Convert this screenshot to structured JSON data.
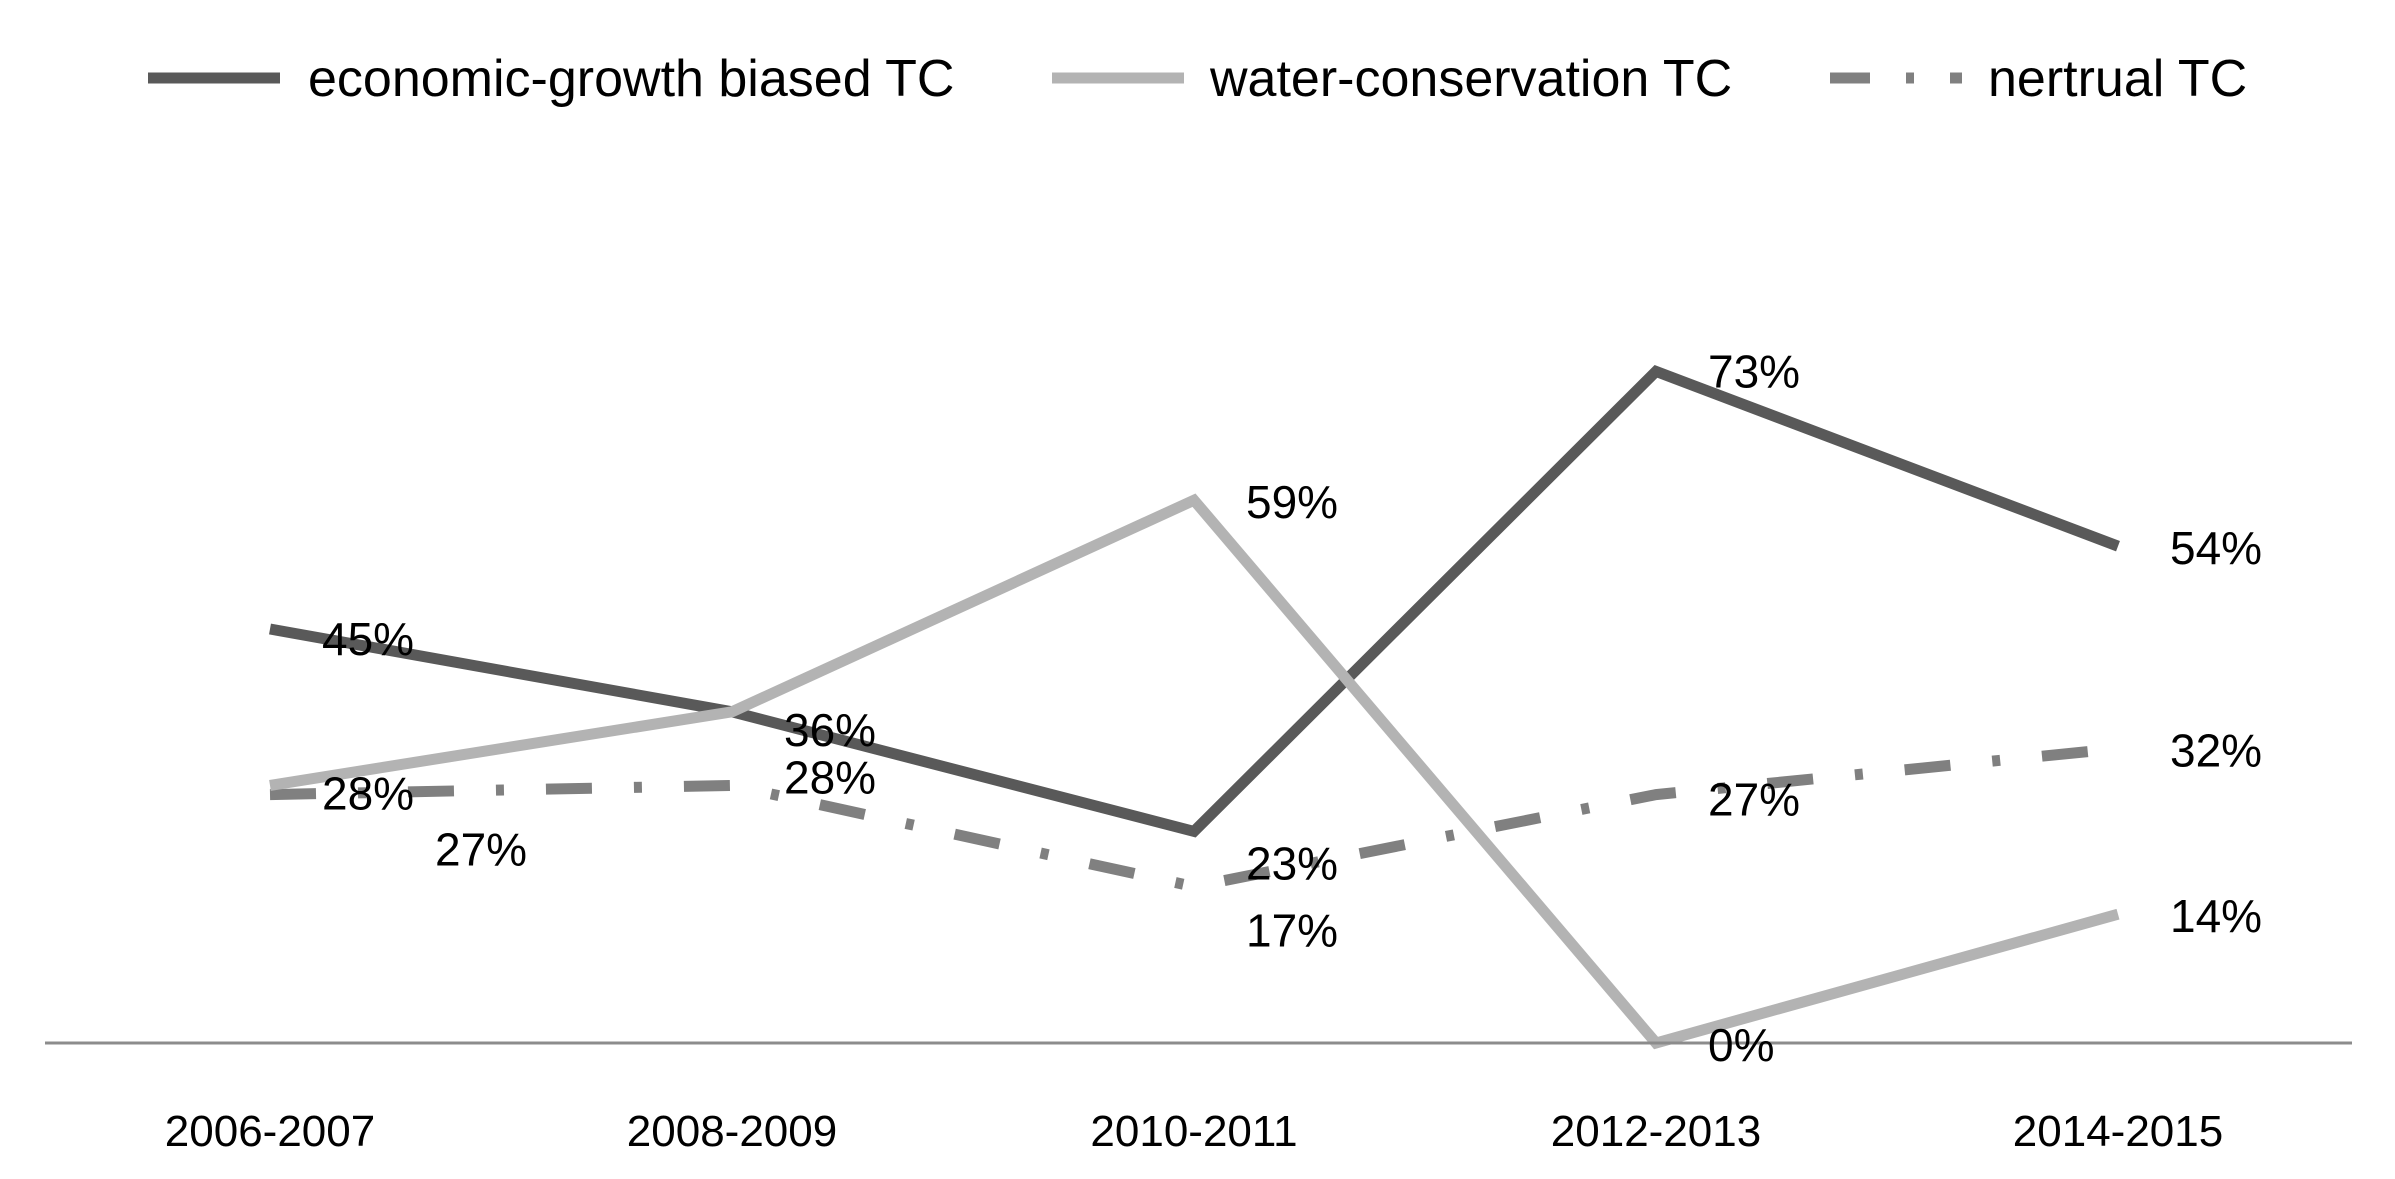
{
  "chart_data": {
    "type": "line",
    "title": "",
    "xlabel": "",
    "ylabel": "",
    "ylim": [
      0,
      100
    ],
    "grid": false,
    "legend_position": "top",
    "categories": [
      "2006-2007",
      "2008-2009",
      "2010-2011",
      "2012-2013",
      "2014-2015"
    ],
    "series": [
      {
        "name": "economic-growth biased TC",
        "values": [
          45,
          36,
          23,
          73,
          54
        ],
        "labels": [
          "45%",
          "36%",
          "23%",
          "73%",
          "54%"
        ],
        "color": "#595959",
        "style": "solid"
      },
      {
        "name": "water-conservation TC",
        "values": [
          28,
          36,
          59,
          0,
          14
        ],
        "labels": [
          "28%",
          "",
          "59%",
          "0%",
          "14%"
        ],
        "color": "#b3b3b3",
        "style": "solid"
      },
      {
        "name": "nertrual TC",
        "values": [
          27,
          28,
          17,
          27,
          32
        ],
        "labels": [
          "27%",
          "28%",
          "17%",
          "27%",
          "32%"
        ],
        "color": "#808080",
        "style": "dash-dot"
      }
    ]
  }
}
